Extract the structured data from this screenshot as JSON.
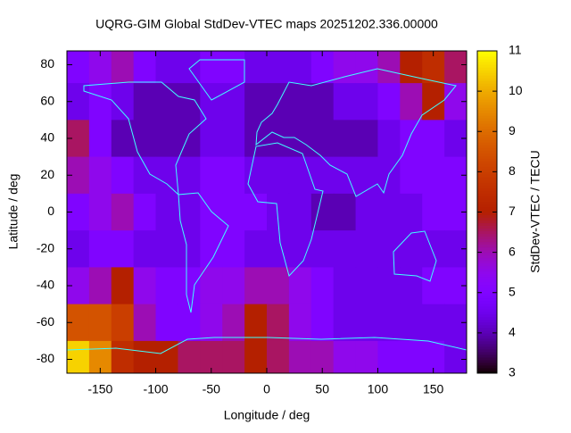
{
  "chart_data": {
    "type": "heatmap",
    "title": "UQRG-GIM Global StdDev-VTEC maps 20251202.336.00000",
    "x_label": "Longitude / deg",
    "y_label": "Latitude / deg",
    "colorbar_label": "StdDev-VTEC / TECU",
    "x": [
      -170,
      -150,
      -130,
      -110,
      -90,
      -70,
      -50,
      -30,
      -10,
      10,
      30,
      50,
      70,
      90,
      110,
      130,
      150,
      170
    ],
    "y": [
      80,
      60,
      40,
      20,
      0,
      -20,
      -40,
      -60,
      -80
    ],
    "values": [
      [
        5,
        5.5,
        6,
        5,
        4.5,
        4.5,
        5,
        5,
        4.5,
        4.5,
        4.5,
        5,
        5.5,
        5.5,
        6,
        7,
        7.5,
        6.5
      ],
      [
        4.5,
        5,
        4.5,
        4,
        4,
        4,
        4.5,
        4.5,
        4,
        4,
        4,
        4,
        4.5,
        4.5,
        5,
        6,
        7,
        5.5
      ],
      [
        6.5,
        5,
        4,
        4,
        4,
        4,
        4.5,
        4.5,
        4,
        4,
        4,
        4,
        4,
        4,
        4.5,
        5,
        5,
        4.5
      ],
      [
        6,
        5.5,
        5,
        4.5,
        4.5,
        4.5,
        5,
        5,
        4.5,
        4.5,
        4.5,
        4.5,
        4.5,
        4.5,
        4.5,
        5,
        5,
        5
      ],
      [
        5,
        5.5,
        6,
        5,
        4.5,
        4.5,
        5,
        5,
        5,
        4.5,
        4.5,
        4,
        4,
        4.5,
        4.5,
        4.5,
        5,
        5
      ],
      [
        4.5,
        5,
        5,
        4.5,
        4.5,
        4.5,
        5,
        5,
        4.5,
        4.5,
        4.5,
        4.5,
        4.5,
        4.5,
        4.5,
        4.5,
        4.5,
        4.5
      ],
      [
        5.5,
        6,
        7,
        5.5,
        5,
        5,
        5.5,
        5.5,
        6,
        6,
        5.5,
        5,
        4.5,
        4.5,
        4.5,
        4.5,
        5,
        5
      ],
      [
        8.5,
        8.5,
        8,
        6,
        5,
        5,
        5.5,
        6,
        7,
        6.5,
        5.5,
        5,
        4.5,
        4.5,
        4.5,
        4.5,
        4.5,
        4.5
      ],
      [
        10.5,
        9.5,
        7.5,
        7,
        7,
        6.5,
        6.5,
        6.5,
        7,
        6.5,
        6,
        6,
        5.5,
        5.5,
        5,
        5,
        5,
        4.5
      ]
    ],
    "xlim": [
      -180,
      180
    ],
    "ylim": [
      -87.5,
      87.5
    ],
    "xticks": [
      -150,
      -100,
      -50,
      0,
      50,
      100,
      150
    ],
    "yticks": [
      -80,
      -60,
      -40,
      -20,
      0,
      20,
      40,
      60,
      80
    ],
    "zlim": [
      3,
      11
    ],
    "zticks": [
      3,
      4,
      5,
      6,
      7,
      8,
      9,
      10,
      11
    ],
    "colormap": "gnuplot",
    "coastline_color": "#40ffff"
  }
}
